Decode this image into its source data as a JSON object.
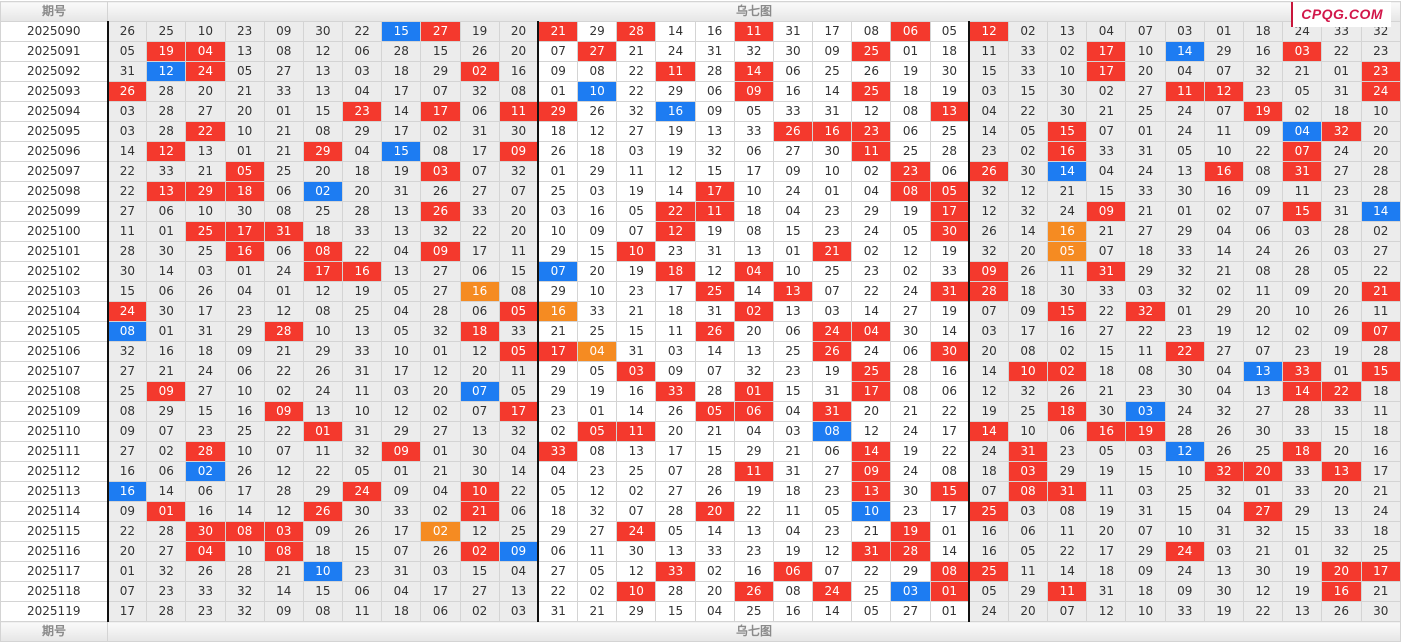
{
  "header": {
    "period_label": "期号",
    "chart_label": "乌七图"
  },
  "footer": {
    "period_label": "期号",
    "chart_label": "乌七图"
  },
  "logo": {
    "text": "CPQG.COM"
  },
  "legend_codes": {
    "r": "#f4392d",
    "b": "#1d7cf2",
    "o": "#f58b22"
  },
  "rows": [
    {
      "period": "2025090",
      "cells": [
        "26",
        "25",
        "10",
        "23",
        "09",
        "30",
        "22",
        "15b",
        "27r",
        "19",
        "20",
        "21r",
        "29",
        "28r",
        "14",
        "16",
        "11r",
        "31",
        "17",
        "08",
        "06r",
        "05",
        "12r",
        "02",
        "13",
        "04",
        "07",
        "03",
        "01",
        "18",
        "24",
        "33",
        "32"
      ]
    },
    {
      "period": "2025091",
      "cells": [
        "05",
        "19r",
        "04r",
        "13",
        "08",
        "12",
        "06",
        "28",
        "15",
        "26",
        "20",
        "07",
        "27r",
        "21",
        "24",
        "31",
        "32",
        "30",
        "09",
        "25r",
        "01",
        "18",
        "11",
        "33",
        "02",
        "17r",
        "10",
        "14b",
        "29",
        "16",
        "03r",
        "22",
        "23"
      ]
    },
    {
      "period": "2025092",
      "cells": [
        "31",
        "12b",
        "24r",
        "05",
        "27",
        "13",
        "03",
        "18",
        "29",
        "02r",
        "16",
        "09",
        "08",
        "22",
        "11r",
        "28",
        "14r",
        "06",
        "25",
        "26",
        "19",
        "30",
        "15",
        "33",
        "10",
        "17r",
        "20",
        "04",
        "07",
        "32",
        "21",
        "01",
        "23r"
      ]
    },
    {
      "period": "2025093",
      "cells": [
        "26r",
        "28",
        "20",
        "21",
        "33",
        "13",
        "04",
        "17",
        "07",
        "32",
        "08",
        "01",
        "10b",
        "22",
        "29",
        "06",
        "09r",
        "16",
        "14",
        "25r",
        "18",
        "19",
        "03",
        "15",
        "30",
        "02",
        "27",
        "11r",
        "12r",
        "23",
        "05",
        "31",
        "24r"
      ]
    },
    {
      "period": "2025094",
      "cells": [
        "03",
        "28",
        "27",
        "20",
        "01",
        "15",
        "23r",
        "14",
        "17r",
        "06",
        "11r",
        "29r",
        "26",
        "32",
        "16b",
        "09",
        "05",
        "33",
        "31",
        "12",
        "08",
        "13r",
        "04",
        "22",
        "30",
        "21",
        "25",
        "24",
        "07",
        "19r",
        "02",
        "18",
        "10"
      ]
    },
    {
      "period": "2025095",
      "cells": [
        "03",
        "28",
        "22r",
        "10",
        "21",
        "08",
        "29",
        "17",
        "02",
        "31",
        "30",
        "18",
        "12",
        "27",
        "19",
        "13",
        "33",
        "26r",
        "16r",
        "23r",
        "06",
        "25",
        "14",
        "05",
        "15r",
        "07",
        "01",
        "24",
        "11",
        "09",
        "04b",
        "32r",
        "20"
      ]
    },
    {
      "period": "2025096",
      "cells": [
        "14",
        "12r",
        "13",
        "01",
        "21",
        "29r",
        "04",
        "15b",
        "08",
        "17",
        "09r",
        "26",
        "18",
        "03",
        "19",
        "32",
        "06",
        "27",
        "30",
        "11r",
        "25",
        "28",
        "23",
        "02",
        "16r",
        "33",
        "31",
        "05",
        "10",
        "22",
        "07r",
        "24",
        "20"
      ]
    },
    {
      "period": "2025097",
      "cells": [
        "22",
        "33",
        "21",
        "05r",
        "25",
        "20",
        "18",
        "19",
        "03r",
        "07",
        "32",
        "01",
        "29",
        "11",
        "12",
        "15",
        "17",
        "09",
        "10",
        "02",
        "23r",
        "06",
        "26r",
        "30",
        "14b",
        "04",
        "24",
        "13",
        "16r",
        "08",
        "31r",
        "27",
        "28"
      ]
    },
    {
      "period": "2025098",
      "cells": [
        "22",
        "13r",
        "29r",
        "18r",
        "06",
        "02b",
        "20",
        "31",
        "26",
        "27",
        "07",
        "25",
        "03",
        "19",
        "14",
        "17r",
        "10",
        "24",
        "01",
        "04",
        "08r",
        "05r",
        "32",
        "12",
        "21",
        "15",
        "33",
        "30",
        "16",
        "09",
        "11",
        "23",
        "28"
      ]
    },
    {
      "period": "2025099",
      "cells": [
        "27",
        "06",
        "10",
        "30",
        "08",
        "25",
        "28",
        "13",
        "26r",
        "33",
        "20",
        "03",
        "16",
        "05",
        "22r",
        "11r",
        "18",
        "04",
        "23",
        "29",
        "19",
        "17r",
        "12",
        "32",
        "24",
        "09r",
        "21",
        "01",
        "02",
        "07",
        "15r",
        "31",
        "14b"
      ]
    },
    {
      "period": "2025100",
      "cells": [
        "11",
        "01",
        "25r",
        "17r",
        "31r",
        "18",
        "33",
        "13",
        "32",
        "22",
        "20",
        "10",
        "09",
        "07",
        "12r",
        "19",
        "08",
        "15",
        "23",
        "24",
        "05",
        "30r",
        "26",
        "14",
        "16o",
        "21",
        "27",
        "29",
        "04",
        "06",
        "03",
        "28",
        "02"
      ]
    },
    {
      "period": "2025101",
      "cells": [
        "28",
        "30",
        "25",
        "16r",
        "06",
        "08r",
        "22",
        "04",
        "09r",
        "17",
        "11",
        "29",
        "15",
        "10r",
        "23",
        "31",
        "13",
        "01",
        "21r",
        "02",
        "12",
        "19",
        "32",
        "20",
        "05o",
        "07",
        "18",
        "33",
        "14",
        "24",
        "26",
        "03",
        "27"
      ]
    },
    {
      "period": "2025102",
      "cells": [
        "30",
        "14",
        "03",
        "01",
        "24",
        "17r",
        "16r",
        "13",
        "27",
        "06",
        "15",
        "07b",
        "20",
        "19",
        "18r",
        "12",
        "04r",
        "10",
        "25",
        "23",
        "02",
        "33",
        "09r",
        "26",
        "11",
        "31r",
        "29",
        "32",
        "21",
        "08",
        "28",
        "05",
        "22"
      ]
    },
    {
      "period": "2025103",
      "cells": [
        "15",
        "06",
        "26",
        "04",
        "01",
        "12",
        "19",
        "05",
        "27",
        "16o",
        "08",
        "29",
        "10",
        "23",
        "17",
        "25r",
        "14",
        "13r",
        "07",
        "22",
        "24",
        "31r",
        "28r",
        "18",
        "30",
        "33",
        "03",
        "32",
        "02",
        "11",
        "09",
        "20",
        "21r"
      ]
    },
    {
      "period": "2025104",
      "cells": [
        "24r",
        "30",
        "17",
        "23",
        "12",
        "08",
        "25",
        "04",
        "28",
        "06",
        "05r",
        "16o",
        "33",
        "21",
        "18",
        "31",
        "02r",
        "13",
        "03",
        "14",
        "27",
        "19",
        "07",
        "09",
        "15r",
        "22",
        "32r",
        "01",
        "29",
        "20",
        "10",
        "26",
        "11"
      ]
    },
    {
      "period": "2025105",
      "cells": [
        "08b",
        "01",
        "31",
        "29",
        "28r",
        "10",
        "13",
        "05",
        "32",
        "18r",
        "33",
        "21",
        "25",
        "15",
        "11",
        "26r",
        "20",
        "06",
        "24r",
        "04r",
        "30",
        "14",
        "03",
        "17",
        "16",
        "27",
        "22",
        "23",
        "19",
        "12",
        "02",
        "09",
        "07r"
      ]
    },
    {
      "period": "2025106",
      "cells": [
        "32",
        "16",
        "18",
        "09",
        "21",
        "29",
        "33",
        "10",
        "01",
        "12",
        "05r",
        "17r",
        "04o",
        "31",
        "03",
        "14",
        "13",
        "25",
        "26r",
        "24",
        "06",
        "30r",
        "20",
        "08",
        "02",
        "15",
        "11",
        "22r",
        "27",
        "07",
        "23",
        "19",
        "28"
      ]
    },
    {
      "period": "2025107",
      "cells": [
        "27",
        "21",
        "24",
        "06",
        "22",
        "26",
        "31",
        "17",
        "12",
        "20",
        "11",
        "29",
        "05",
        "03r",
        "09",
        "07",
        "32",
        "23",
        "19",
        "25r",
        "28",
        "16",
        "14",
        "10r",
        "02r",
        "18",
        "08",
        "30",
        "04",
        "13b",
        "33r",
        "01",
        "15r"
      ]
    },
    {
      "period": "2025108",
      "cells": [
        "25",
        "09r",
        "27",
        "10",
        "02",
        "24",
        "11",
        "03",
        "20",
        "07b",
        "05",
        "29",
        "19",
        "16",
        "33r",
        "28",
        "01r",
        "15",
        "31",
        "17r",
        "08",
        "06",
        "12",
        "32",
        "26",
        "21",
        "23",
        "30",
        "04",
        "13",
        "14r",
        "22r",
        "18"
      ]
    },
    {
      "period": "2025109",
      "cells": [
        "08",
        "29",
        "15",
        "16",
        "09r",
        "13",
        "10",
        "12",
        "02",
        "07",
        "17r",
        "23",
        "01",
        "14",
        "26",
        "05r",
        "06r",
        "04",
        "31r",
        "20",
        "21",
        "22",
        "19",
        "25",
        "18r",
        "30",
        "03b",
        "24",
        "32",
        "27",
        "28",
        "33",
        "11"
      ]
    },
    {
      "period": "2025110",
      "cells": [
        "09",
        "07",
        "23",
        "25",
        "22",
        "01r",
        "31",
        "29",
        "27",
        "13",
        "32",
        "02",
        "05r",
        "11r",
        "20",
        "21",
        "04",
        "03",
        "08b",
        "12",
        "24",
        "17",
        "14r",
        "10",
        "06",
        "16r",
        "19r",
        "28",
        "26",
        "30",
        "33",
        "15",
        "18"
      ]
    },
    {
      "period": "2025111",
      "cells": [
        "27",
        "02",
        "28r",
        "10",
        "07",
        "11",
        "32",
        "09r",
        "01",
        "30",
        "04",
        "33r",
        "08",
        "13",
        "17",
        "15",
        "29",
        "21",
        "06",
        "14r",
        "19",
        "22",
        "24",
        "31r",
        "23",
        "05",
        "03",
        "12b",
        "26",
        "25",
        "18r",
        "20",
        "16"
      ]
    },
    {
      "period": "2025112",
      "cells": [
        "16",
        "06",
        "02b",
        "26",
        "12",
        "22",
        "05",
        "01",
        "21",
        "30",
        "14",
        "04",
        "23",
        "25",
        "07",
        "28",
        "11r",
        "31",
        "27",
        "09r",
        "24",
        "08",
        "18",
        "03r",
        "29",
        "19",
        "15",
        "10",
        "32r",
        "20r",
        "33",
        "13r",
        "17"
      ]
    },
    {
      "period": "2025113",
      "cells": [
        "16b",
        "14",
        "06",
        "17",
        "28",
        "29",
        "24r",
        "09",
        "04",
        "10r",
        "22",
        "05",
        "12",
        "02",
        "27",
        "26",
        "19",
        "18",
        "23",
        "13r",
        "30",
        "15r",
        "07",
        "08r",
        "31r",
        "11",
        "03",
        "25",
        "32",
        "01",
        "33",
        "20",
        "21"
      ]
    },
    {
      "period": "2025114",
      "cells": [
        "09",
        "01r",
        "16",
        "14",
        "12",
        "26r",
        "30",
        "33",
        "02",
        "21r",
        "06",
        "18",
        "32",
        "07",
        "28",
        "20r",
        "22",
        "11",
        "05",
        "10b",
        "23",
        "17",
        "25r",
        "03",
        "08",
        "19",
        "31",
        "15",
        "04",
        "27r",
        "29",
        "13",
        "24"
      ]
    },
    {
      "period": "2025115",
      "cells": [
        "22",
        "28",
        "30r",
        "08r",
        "03r",
        "09",
        "26",
        "17",
        "02o",
        "12",
        "25",
        "29",
        "27",
        "24r",
        "05",
        "14",
        "13",
        "04",
        "23",
        "21",
        "19r",
        "01",
        "16",
        "06",
        "11",
        "20",
        "07",
        "10",
        "31",
        "32",
        "15",
        "33",
        "18"
      ]
    },
    {
      "period": "2025116",
      "cells": [
        "20",
        "27",
        "04r",
        "10",
        "08r",
        "18",
        "15",
        "07",
        "26",
        "02r",
        "09b",
        "06",
        "11",
        "30",
        "13",
        "33",
        "23",
        "19",
        "12",
        "31r",
        "28r",
        "14",
        "16",
        "05",
        "22",
        "17",
        "29",
        "24r",
        "03",
        "21",
        "01",
        "32",
        "25"
      ]
    },
    {
      "period": "2025117",
      "cells": [
        "01",
        "32",
        "26",
        "28",
        "21",
        "10b",
        "23",
        "31",
        "03",
        "15",
        "04",
        "27",
        "05",
        "12",
        "33r",
        "02",
        "16",
        "06r",
        "07",
        "22",
        "29",
        "08r",
        "25r",
        "11",
        "14",
        "18",
        "09",
        "24",
        "13",
        "30",
        "19",
        "20r",
        "17r"
      ]
    },
    {
      "period": "2025118",
      "cells": [
        "07",
        "23",
        "33",
        "32",
        "14",
        "15",
        "06",
        "04",
        "17",
        "27",
        "13",
        "22",
        "02",
        "10r",
        "28",
        "20",
        "26r",
        "08",
        "24r",
        "25",
        "03b",
        "01r",
        "05",
        "29",
        "11r",
        "31",
        "18",
        "09",
        "30",
        "12",
        "19",
        "16r",
        "21"
      ]
    },
    {
      "period": "2025119",
      "cells": [
        "17",
        "28",
        "23",
        "32",
        "09",
        "08",
        "11",
        "18",
        "06",
        "02",
        "03",
        "31",
        "21",
        "29",
        "15",
        "04",
        "25",
        "16",
        "14",
        "05",
        "27",
        "01",
        "24",
        "20",
        "07",
        "12",
        "10",
        "33",
        "19",
        "22",
        "13",
        "26",
        "30"
      ]
    }
  ]
}
